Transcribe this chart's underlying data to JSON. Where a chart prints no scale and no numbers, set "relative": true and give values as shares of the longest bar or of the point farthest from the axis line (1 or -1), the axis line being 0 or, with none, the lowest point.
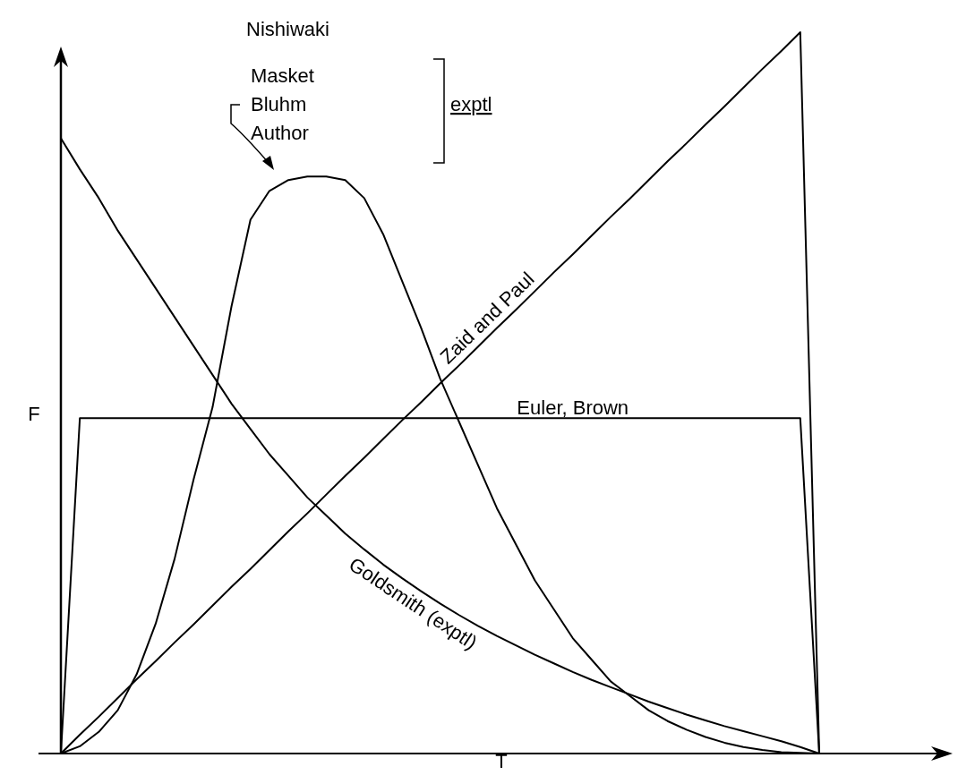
{
  "chart_data": {
    "type": "line",
    "relative": true,
    "xlabel": "T",
    "ylabel": "F",
    "categories": [
      null,
      null,
      null,
      null,
      null,
      null,
      null,
      null,
      null,
      null,
      null,
      null,
      null,
      null,
      null,
      null,
      null,
      null,
      null,
      null,
      null,
      null,
      null,
      null,
      null,
      null,
      null,
      null,
      null,
      null,
      null,
      null,
      null,
      null,
      null,
      null,
      null,
      null,
      null,
      null,
      null
    ],
    "series": [
      {
        "name": "Zaid and Paul",
        "color": "#000000",
        "values": [
          0,
          0.026,
          0.051,
          0.077,
          0.103,
          0.128,
          0.154,
          0.179,
          0.205,
          0.231,
          0.256,
          0.282,
          0.308,
          0.333,
          0.359,
          0.385,
          0.41,
          0.436,
          0.462,
          0.487,
          0.513,
          0.538,
          0.564,
          0.59,
          0.615,
          0.641,
          0.667,
          0.692,
          0.718,
          0.744,
          0.769,
          0.795,
          0.821,
          0.846,
          0.872,
          0.897,
          0.923,
          0.949,
          0.974,
          1,
          0
        ]
      },
      {
        "name": "Euler, Brown",
        "color": "#000000",
        "values": [
          0,
          0.465,
          0.465,
          0.465,
          0.465,
          0.465,
          0.465,
          0.465,
          0.465,
          0.465,
          0.465,
          0.465,
          0.465,
          0.465,
          0.465,
          0.465,
          0.465,
          0.465,
          0.465,
          0.465,
          0.465,
          0.465,
          0.465,
          0.465,
          0.465,
          0.465,
          0.465,
          0.465,
          0.465,
          0.465,
          0.465,
          0.465,
          0.465,
          0.465,
          0.465,
          0.465,
          0.465,
          0.465,
          0.465,
          0.465,
          0
        ]
      },
      {
        "name": "Goldsmith (exptl)",
        "color": "#000000",
        "values": [
          0.853,
          0.81,
          0.77,
          0.725,
          0.685,
          0.645,
          0.605,
          0.565,
          0.525,
          0.485,
          0.45,
          0.415,
          0.385,
          0.355,
          0.33,
          0.305,
          0.283,
          0.262,
          0.243,
          0.225,
          0.208,
          0.192,
          0.177,
          0.163,
          0.15,
          0.137,
          0.125,
          0.113,
          0.102,
          0.092,
          0.082,
          0.072,
          0.063,
          0.054,
          0.046,
          0.038,
          0.031,
          0.024,
          0.017,
          0.009,
          0
        ]
      },
      {
        "color": "#000000",
        "values": [
          0,
          0.01,
          0.03,
          0.06,
          0.11,
          0.18,
          0.27,
          0.38,
          0.48,
          0.62,
          0.74,
          0.78,
          0.795,
          0.8,
          0.8,
          0.795,
          0.77,
          0.72,
          0.655,
          0.59,
          0.52,
          0.46,
          0.4,
          0.34,
          0.29,
          0.24,
          0.2,
          0.16,
          0.13,
          0.1,
          0.08,
          0.06,
          0.045,
          0.033,
          0.023,
          0.015,
          0.009,
          0.005,
          0.002,
          0.001,
          0
        ]
      }
    ],
    "annotations": [
      "Nishiwaki",
      "Masket",
      "Bluhm",
      "Author",
      "exptl"
    ]
  }
}
